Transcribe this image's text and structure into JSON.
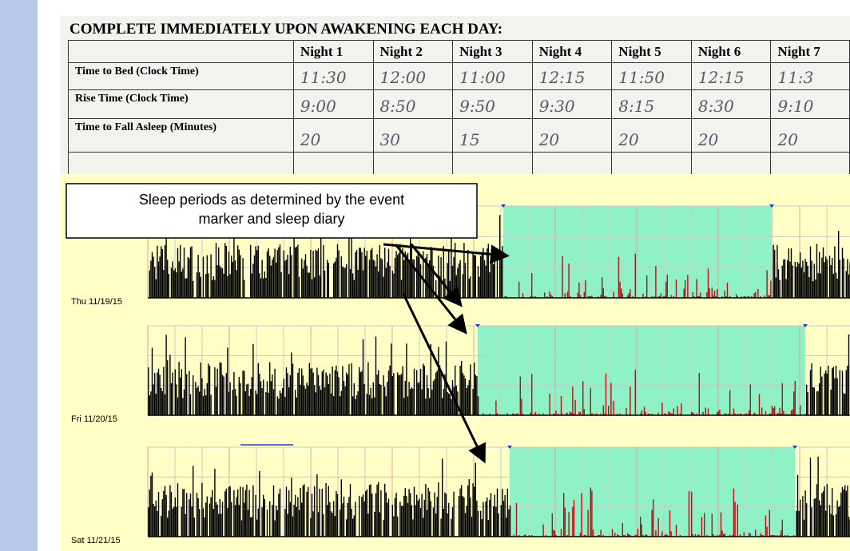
{
  "diary": {
    "title": "COMPLETE IMMEDIATELY UPON AWAKENING EACH DAY:",
    "columns": [
      "Night 1",
      "Night 2",
      "Night 3",
      "Night 4",
      "Night 5",
      "Night 6",
      "Night 7"
    ],
    "rows": [
      {
        "label": "Time to Bed (Clock Time)",
        "values": [
          "11:30",
          "12:00",
          "11:00",
          "12:15",
          "11:50",
          "12:15",
          "11:3"
        ]
      },
      {
        "label": "Rise Time (Clock Time)",
        "values": [
          "9:00",
          "8:50",
          "9:50",
          "9:30",
          "8:15",
          "8:30",
          "9:10"
        ]
      },
      {
        "label": "Time to Fall Asleep (Minutes)",
        "values": [
          "20",
          "30",
          "15",
          "20",
          "20",
          "20",
          "20"
        ]
      }
    ]
  },
  "callout": "Sleep periods as determined by the event marker and sleep diary",
  "days": [
    "Thu 11/19/15",
    "Fri 11/20/15",
    "Sat 11/21/15"
  ]
}
